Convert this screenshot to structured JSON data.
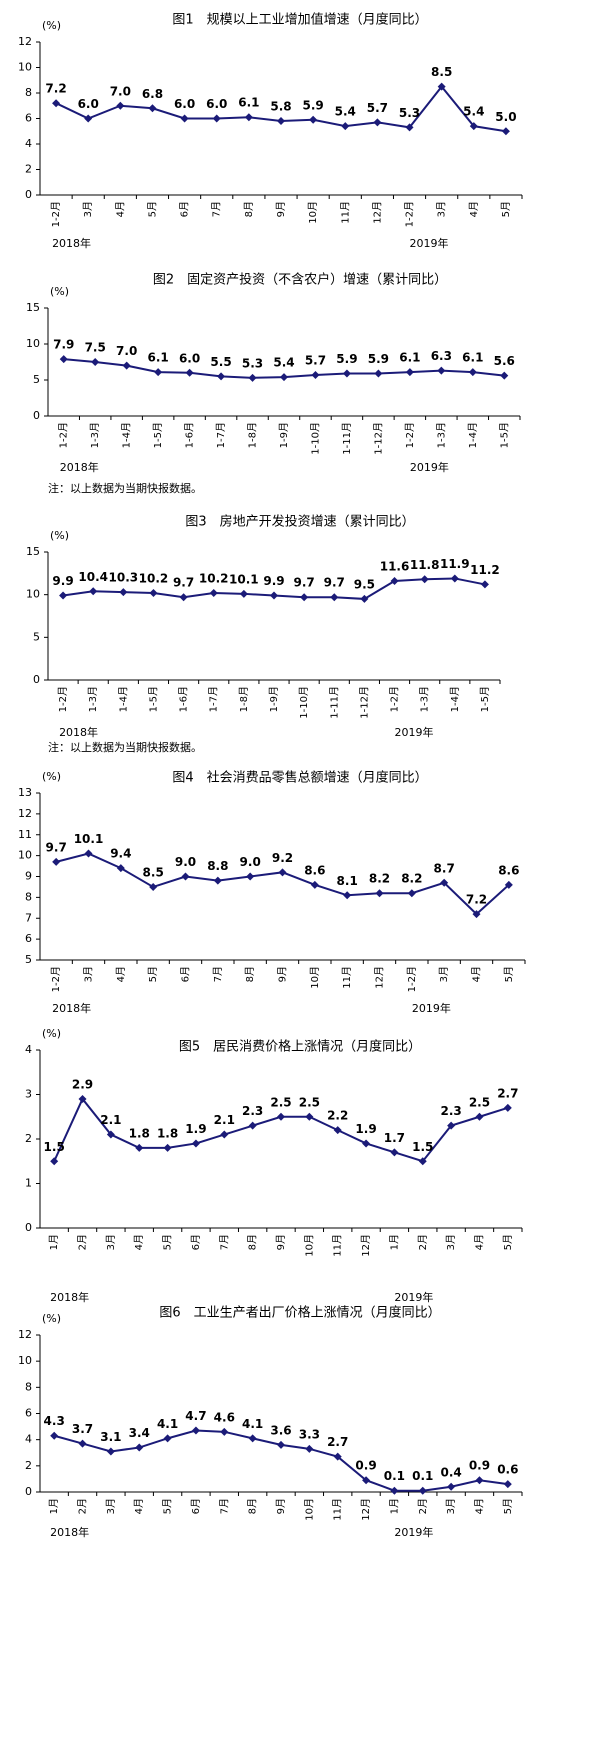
{
  "chart_data": [
    {
      "type": "line",
      "title": "图1　规模以上工业增加值增速（月度同比）",
      "unit": "(%)",
      "categories": [
        "1-2月",
        "3月",
        "4月",
        "5月",
        "6月",
        "7月",
        "8月",
        "9月",
        "10月",
        "11月",
        "12月",
        "1-2月",
        "3月",
        "4月",
        "5月"
      ],
      "values": [
        7.2,
        6.0,
        7.0,
        6.8,
        6.0,
        6.0,
        6.1,
        5.8,
        5.9,
        5.4,
        5.7,
        5.3,
        8.5,
        5.4,
        5.0
      ],
      "value_labels": [
        "7.2",
        "6.0",
        "7.0",
        "6.8",
        "6.0",
        "6.0",
        "6.1",
        "5.8",
        "5.9",
        "5.4",
        "5.7",
        "5.3",
        "8.5",
        "5.4",
        "5.0"
      ],
      "color": "#1b1b78",
      "ylim": [
        0,
        12
      ],
      "yticks": [
        0,
        2,
        4,
        6,
        8,
        10,
        12
      ],
      "year_labels": [
        "2018年",
        "2019年"
      ]
    },
    {
      "type": "line",
      "title": "图2　固定资产投资（不含农户）增速（累计同比）",
      "unit": "(%)",
      "categories": [
        "1-2月",
        "1-3月",
        "1-4月",
        "1-5月",
        "1-6月",
        "1-7月",
        "1-8月",
        "1-9月",
        "1-10月",
        "1-11月",
        "1-12月",
        "1-2月",
        "1-3月",
        "1-4月",
        "1-5月"
      ],
      "values": [
        7.9,
        7.5,
        7.0,
        6.1,
        6.0,
        5.5,
        5.3,
        5.4,
        5.7,
        5.9,
        5.9,
        6.1,
        6.3,
        6.1,
        5.6
      ],
      "value_labels": [
        "7.9",
        "7.5",
        "7.0",
        "6.1",
        "6.0",
        "5.5",
        "5.3",
        "5.4",
        "5.7",
        "5.9",
        "5.9",
        "6.1",
        "6.3",
        "6.1",
        "5.6"
      ],
      "color": "#1b1b78",
      "ylim": [
        0,
        15
      ],
      "yticks": [
        0,
        5,
        10,
        15
      ],
      "year_labels": [
        "2018年",
        "2019年"
      ],
      "note": "注：以上数据为当期快报数据。"
    },
    {
      "type": "line",
      "title": "图3　房地产开发投资增速（累计同比）",
      "unit": "(%)",
      "categories": [
        "1-2月",
        "1-3月",
        "1-4月",
        "1-5月",
        "1-6月",
        "1-7月",
        "1-8月",
        "1-9月",
        "1-10月",
        "1-11月",
        "1-12月",
        "1-2月",
        "1-3月",
        "1-4月",
        "1-5月"
      ],
      "values": [
        9.9,
        10.4,
        10.3,
        10.2,
        9.7,
        10.2,
        10.1,
        9.9,
        9.7,
        9.7,
        9.5,
        11.6,
        11.8,
        11.9,
        11.2
      ],
      "value_labels": [
        "9.9",
        "10.4",
        "10.3",
        "10.2",
        "9.7",
        "10.2",
        "10.1",
        "9.9",
        "9.7",
        "9.7",
        "9.5",
        "11.6",
        "11.8",
        "11.9",
        "11.2"
      ],
      "color": "#1b1b78",
      "ylim": [
        0,
        15
      ],
      "yticks": [
        0,
        5,
        10,
        15
      ],
      "year_labels": [
        "2018年",
        "2019年"
      ],
      "note": "注：以上数据为当期快报数据。"
    },
    {
      "type": "line",
      "title": "图4　社会消费品零售总额增速（月度同比）",
      "unit": "(%)",
      "categories": [
        "1-2月",
        "3月",
        "4月",
        "5月",
        "6月",
        "7月",
        "8月",
        "9月",
        "10月",
        "11月",
        "12月",
        "1-2月",
        "3月",
        "4月",
        "5月"
      ],
      "values": [
        9.7,
        10.1,
        9.4,
        8.5,
        9.0,
        8.8,
        9.0,
        9.2,
        8.6,
        8.1,
        8.2,
        8.2,
        8.7,
        7.2,
        8.6
      ],
      "value_labels": [
        "9.7",
        "10.1",
        "9.4",
        "8.5",
        "9.0",
        "8.8",
        "9.0",
        "9.2",
        "8.6",
        "8.1",
        "8.2",
        "8.2",
        "8.7",
        "7.2",
        "8.6"
      ],
      "color": "#1b1b78",
      "ylim": [
        5,
        13
      ],
      "yticks": [
        5,
        6,
        7,
        8,
        9,
        10,
        11,
        12,
        13
      ],
      "year_labels": [
        "2018年",
        "2019年"
      ]
    },
    {
      "type": "line",
      "title": "图5　居民消费价格上涨情况（月度同比）",
      "unit": "(%)",
      "categories": [
        "1月",
        "2月",
        "3月",
        "4月",
        "5月",
        "6月",
        "7月",
        "8月",
        "9月",
        "10月",
        "11月",
        "12月",
        "1月",
        "2月",
        "3月",
        "4月",
        "5月"
      ],
      "values": [
        1.5,
        2.9,
        2.1,
        1.8,
        1.8,
        1.9,
        2.1,
        2.3,
        2.5,
        2.5,
        2.2,
        1.9,
        1.7,
        1.5,
        2.3,
        2.5,
        2.7
      ],
      "color": "#1b1b78",
      "ylim": [
        0,
        4
      ],
      "yticks": [
        0,
        1,
        2,
        3,
        4
      ],
      "year_labels": [
        "2018年",
        "2019年"
      ]
    },
    {
      "type": "line",
      "title": "图6　工业生产者出厂价格上涨情况（月度同比）",
      "unit": "(%)",
      "categories": [
        "1月",
        "2月",
        "3月",
        "4月",
        "5月",
        "6月",
        "7月",
        "8月",
        "9月",
        "10月",
        "11月",
        "12月",
        "1月",
        "2月",
        "3月",
        "4月",
        "5月"
      ],
      "values": [
        4.3,
        3.7,
        3.1,
        3.4,
        4.1,
        4.7,
        4.6,
        4.1,
        3.6,
        3.3,
        2.7,
        0.9,
        0.1,
        0.1,
        0.4,
        0.9,
        0.6
      ],
      "color": "#1b1b78",
      "ylim": [
        0,
        12
      ],
      "yticks": [
        0,
        2,
        4,
        6,
        8,
        10,
        12
      ],
      "year_labels": [
        "2018年",
        "2019年"
      ]
    }
  ]
}
